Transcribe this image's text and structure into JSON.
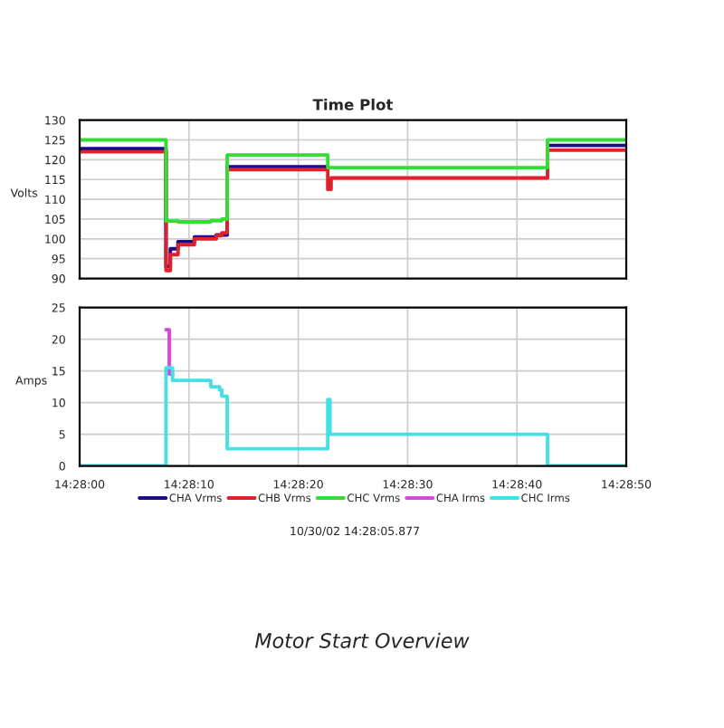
{
  "chart_data": [
    {
      "type": "step",
      "title": "Time Plot",
      "ylabel": "Volts",
      "xlim": [
        14.466667,
        14.480556
      ],
      "xticks": [
        {
          "value": 14.466667,
          "label": null
        },
        {
          "value": 14.469444,
          "label": null
        },
        {
          "value": 14.472222,
          "label": null
        },
        {
          "value": 14.475,
          "label": null
        },
        {
          "value": 14.477778,
          "label": null
        },
        {
          "value": 14.480556,
          "label": null
        }
      ],
      "ylim": [
        90,
        130
      ],
      "yticks": [
        90,
        95,
        100,
        105,
        110,
        115,
        120,
        125,
        130
      ],
      "tick_labels": "y",
      "grid": true,
      "legend": "bottom",
      "series": [
        {
          "name": "CHA Vrms",
          "color": "#1a0a8c",
          "x": [
            14.466667,
            14.468861,
            14.468972,
            14.469167,
            14.469583,
            14.470139,
            14.470417,
            14.472972,
            14.478556,
            14.480556
          ],
          "values": [
            122.8,
            93,
            97.5,
            99.3,
            100.5,
            101,
            118.2,
            null,
            123.6,
            123.6
          ]
        },
        {
          "name": "CHB Vrms",
          "color": "#e0202a",
          "x": [
            14.466667,
            14.468861,
            14.468972,
            14.469167,
            14.469583,
            14.470139,
            14.470278,
            14.470417,
            14.472972,
            14.473056,
            14.478556,
            14.480556
          ],
          "values": [
            122,
            92,
            96,
            98.5,
            100,
            100.8,
            101.5,
            117.5,
            112.5,
            115.4,
            122.4,
            122.4
          ]
        },
        {
          "name": "CHC Vrms",
          "color": "#33dd33",
          "x": [
            14.466667,
            14.468861,
            14.469167,
            14.47,
            14.470278,
            14.470417,
            14.472972,
            14.478556,
            14.480556
          ],
          "values": [
            125,
            104.5,
            104.3,
            104.6,
            105,
            121.2,
            118,
            125,
            125
          ]
        }
      ]
    },
    {
      "type": "step",
      "ylabel": "Amps",
      "xlim": [
        14.466667,
        14.480556
      ],
      "xticks": [
        {
          "value": 14.466667,
          "label": "14:28:00"
        },
        {
          "value": 14.469444,
          "label": "14:28:10"
        },
        {
          "value": 14.472222,
          "label": "14:28:20"
        },
        {
          "value": 14.475,
          "label": "14:28:30"
        },
        {
          "value": 14.477778,
          "label": "14:28:40"
        },
        {
          "value": 14.480556,
          "label": "14:28:50"
        }
      ],
      "ylim": [
        0,
        25
      ],
      "yticks": [
        0,
        5,
        10,
        15,
        20,
        25
      ],
      "grid": true,
      "legend": "bottom",
      "annotations": [
        "10/30/02 14:28:05.877",
        "Motor Start Overview"
      ],
      "series": [
        {
          "name": "CHA Irms",
          "color": "#dd44dd",
          "x": [
            14.468861,
            14.468944,
            14.469028
          ],
          "values": [
            21.5,
            14.5,
            14.5
          ]
        },
        {
          "name": "CHC Irms",
          "color": "#44e0e8",
          "x": [
            14.466667,
            14.468861,
            14.469028,
            14.47,
            14.470222,
            14.470278,
            14.470417,
            14.472972,
            14.473028,
            14.478556,
            14.480556
          ],
          "values": [
            0,
            15.5,
            13.5,
            12.5,
            12,
            11,
            2.7,
            10.5,
            5,
            0,
            0
          ]
        }
      ]
    }
  ]
}
